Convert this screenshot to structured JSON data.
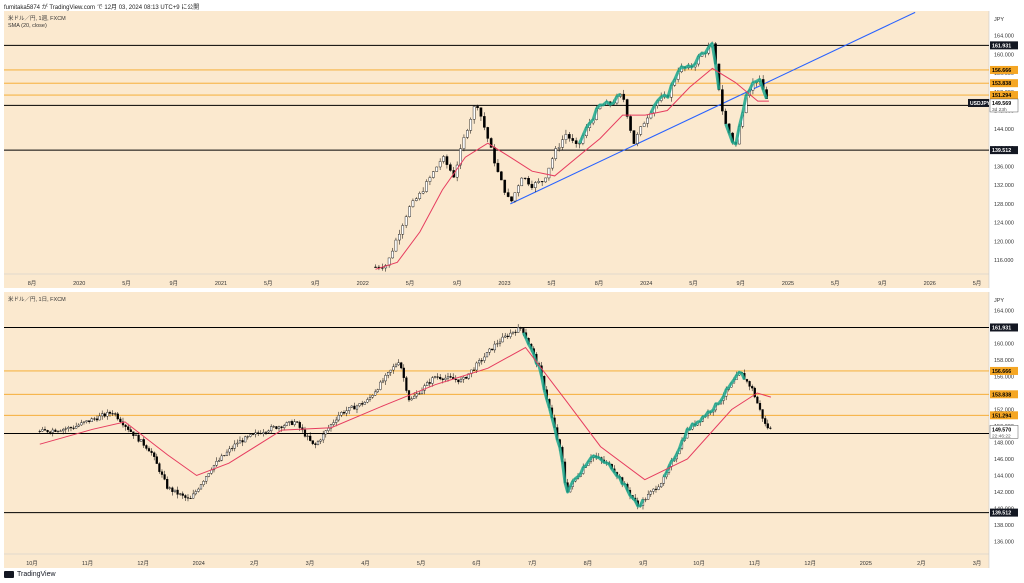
{
  "header": {
    "text": "fumitaka5874 が TradingView.com で 12月 03, 2024 08:13 UTC+9 に公開"
  },
  "footer": {
    "brand": "TradingView"
  },
  "colors": {
    "background": "#fbe9cf",
    "up_candle": "#ffffff",
    "down_candle": "#000000",
    "sma": "#e63c5f",
    "trendline": "#2962ff",
    "orange_line": "#f5a623",
    "black_line": "#000000",
    "highlight": "#1ea98f"
  },
  "chart_data": [
    {
      "type": "candlestick",
      "title": "米ドル／円, 1週, FXCM",
      "indicator": "SMA (20, close)",
      "currency": "JPY",
      "symbol_tag": "USDJPY",
      "price_tag": "149.569",
      "time_left": "3d 23h",
      "x_ticks": [
        "8月",
        "2020",
        "5月",
        "9月",
        "2021",
        "5月",
        "9月",
        "2022",
        "5月",
        "9月",
        "2023",
        "5月",
        "8月",
        "2024",
        "5月",
        "9月",
        "2025",
        "5月",
        "9月",
        "2026",
        "5月"
      ],
      "y_ticks": [
        "164.000",
        "160.000",
        "156.000",
        "152.000",
        "148.000",
        "144.000",
        "140.000",
        "136.000",
        "132.000",
        "128.000",
        "124.000",
        "120.000",
        "116.000"
      ],
      "ylim": [
        113,
        168
      ],
      "levels": [
        {
          "value": 161.931,
          "label": "161.931",
          "color": "black"
        },
        {
          "value": 156.666,
          "label": "156.666",
          "color": "orange"
        },
        {
          "value": 153.838,
          "label": "153.838",
          "color": "orange"
        },
        {
          "value": 151.294,
          "label": "151.294",
          "color": "orange"
        },
        {
          "value": 149.099,
          "label": "149.099",
          "color": "black"
        },
        {
          "value": 139.512,
          "label": "139.512",
          "color": "black"
        }
      ],
      "price_path": [
        [
          "2022-01",
          114.5
        ],
        [
          "2022-02",
          115
        ],
        [
          "2022-03",
          121
        ],
        [
          "2022-04",
          127
        ],
        [
          "2022-05",
          130
        ],
        [
          "2022-06",
          134
        ],
        [
          "2022-07",
          138
        ],
        [
          "2022-08",
          134
        ],
        [
          "2022-09",
          143
        ],
        [
          "2022-10",
          150
        ],
        [
          "2022-11",
          142
        ],
        [
          "2022-12",
          134
        ],
        [
          "2023-01",
          128
        ],
        [
          "2023-02",
          134
        ],
        [
          "2023-03",
          132
        ],
        [
          "2023-04",
          133
        ],
        [
          "2023-05",
          139
        ],
        [
          "2023-06",
          143
        ],
        [
          "2023-07",
          140
        ],
        [
          "2023-08",
          145
        ],
        [
          "2023-09",
          149
        ],
        [
          "2023-10",
          149.5
        ],
        [
          "2023-11",
          151.5
        ],
        [
          "2023-12",
          141
        ],
        [
          "2024-01",
          146
        ],
        [
          "2024-02",
          150
        ],
        [
          "2024-03",
          151
        ],
        [
          "2024-04",
          157
        ],
        [
          "2024-05",
          157
        ],
        [
          "2024-06",
          160
        ],
        [
          "2024-07",
          161.9
        ],
        [
          "2024-08",
          146
        ],
        [
          "2024-09",
          140
        ],
        [
          "2024-10",
          152
        ],
        [
          "2024-11",
          155
        ],
        [
          "2024-12",
          149.6
        ]
      ],
      "sma_path": [
        [
          "2022-01",
          114
        ],
        [
          "2022-03",
          115.5
        ],
        [
          "2022-05",
          122
        ],
        [
          "2022-07",
          131
        ],
        [
          "2022-09",
          138
        ],
        [
          "2022-11",
          141
        ],
        [
          "2023-01",
          138
        ],
        [
          "2023-03",
          135
        ],
        [
          "2023-05",
          134
        ],
        [
          "2023-07",
          138
        ],
        [
          "2023-09",
          142
        ],
        [
          "2023-11",
          147
        ],
        [
          "2024-01",
          147
        ],
        [
          "2024-03",
          148
        ],
        [
          "2024-05",
          153
        ],
        [
          "2024-07",
          157
        ],
        [
          "2024-09",
          154
        ],
        [
          "2024-11",
          150
        ],
        [
          "2024-12",
          150
        ]
      ],
      "trendline": [
        [
          "2023-01",
          128
        ],
        [
          "2026-01",
          169
        ]
      ]
    },
    {
      "type": "candlestick",
      "title": "米ドル／円, 1日, FXCM",
      "currency": "JPY",
      "price_tag": "149.570",
      "time_left": "22:46:22",
      "x_ticks": [
        "10月",
        "11月",
        "12月",
        "2024",
        "2月",
        "3月",
        "4月",
        "5月",
        "6月",
        "7月",
        "8月",
        "9月",
        "10月",
        "11月",
        "12月",
        "2025",
        "2月",
        "3月"
      ],
      "y_ticks": [
        "164.000",
        "162.000",
        "160.000",
        "158.000",
        "156.000",
        "154.000",
        "152.000",
        "150.000",
        "148.000",
        "146.000",
        "144.000",
        "142.000",
        "140.000",
        "138.000",
        "136.000"
      ],
      "ylim": [
        134.5,
        165.5
      ],
      "levels": [
        {
          "value": 161.931,
          "label": "161.931",
          "color": "black"
        },
        {
          "value": 156.666,
          "label": "156.666",
          "color": "orange"
        },
        {
          "value": 153.838,
          "label": "153.838",
          "color": "orange"
        },
        {
          "value": 151.294,
          "label": "151.294",
          "color": "orange"
        },
        {
          "value": 149.099,
          "label": "149.099",
          "color": "black"
        },
        {
          "value": 139.512,
          "label": "139.512",
          "color": "black"
        }
      ],
      "price_path": [
        [
          "2023-10-01",
          149.3
        ],
        [
          "2023-10-20",
          149.8
        ],
        [
          "2023-11-01",
          150.8
        ],
        [
          "2023-11-13",
          151.7
        ],
        [
          "2023-11-25",
          149
        ],
        [
          "2023-12-05",
          147
        ],
        [
          "2023-12-15",
          142.5
        ],
        [
          "2023-12-28",
          141
        ],
        [
          "2024-01-10",
          145
        ],
        [
          "2024-01-25",
          148
        ],
        [
          "2024-02-10",
          149.5
        ],
        [
          "2024-02-28",
          150.5
        ],
        [
          "2024-03-10",
          147.5
        ],
        [
          "2024-03-25",
          151.5
        ],
        [
          "2024-04-10",
          153
        ],
        [
          "2024-04-29",
          158
        ],
        [
          "2024-05-05",
          153
        ],
        [
          "2024-05-20",
          156
        ],
        [
          "2024-06-05",
          155.5
        ],
        [
          "2024-06-25",
          160
        ],
        [
          "2024-07-05",
          161.5
        ],
        [
          "2024-07-10",
          161.9
        ],
        [
          "2024-07-20",
          157
        ],
        [
          "2024-08-02",
          146.5
        ],
        [
          "2024-08-05",
          142
        ],
        [
          "2024-08-20",
          146.5
        ],
        [
          "2024-09-01",
          145
        ],
        [
          "2024-09-16",
          140.3
        ],
        [
          "2024-10-01",
          143.5
        ],
        [
          "2024-10-15",
          149.5
        ],
        [
          "2024-11-01",
          152.5
        ],
        [
          "2024-11-15",
          156.5
        ],
        [
          "2024-11-22",
          154.5
        ],
        [
          "2024-11-30",
          150
        ],
        [
          "2024-12-03",
          149.6
        ]
      ],
      "sma_path": [
        [
          "2023-10-01",
          147.8
        ],
        [
          "2023-11-01",
          149.6
        ],
        [
          "2023-11-20",
          150.5
        ],
        [
          "2023-12-15",
          146.5
        ],
        [
          "2024-01-01",
          144
        ],
        [
          "2024-01-20",
          145.5
        ],
        [
          "2024-02-20",
          149.5
        ],
        [
          "2024-03-20",
          149.8
        ],
        [
          "2024-04-20",
          152.5
        ],
        [
          "2024-05-20",
          155
        ],
        [
          "2024-06-20",
          157
        ],
        [
          "2024-07-12",
          159.5
        ],
        [
          "2024-08-05",
          153
        ],
        [
          "2024-08-25",
          147.5
        ],
        [
          "2024-09-20",
          143.5
        ],
        [
          "2024-10-15",
          146
        ],
        [
          "2024-11-10",
          152
        ],
        [
          "2024-11-25",
          154
        ],
        [
          "2024-12-03",
          153.5
        ]
      ]
    }
  ]
}
